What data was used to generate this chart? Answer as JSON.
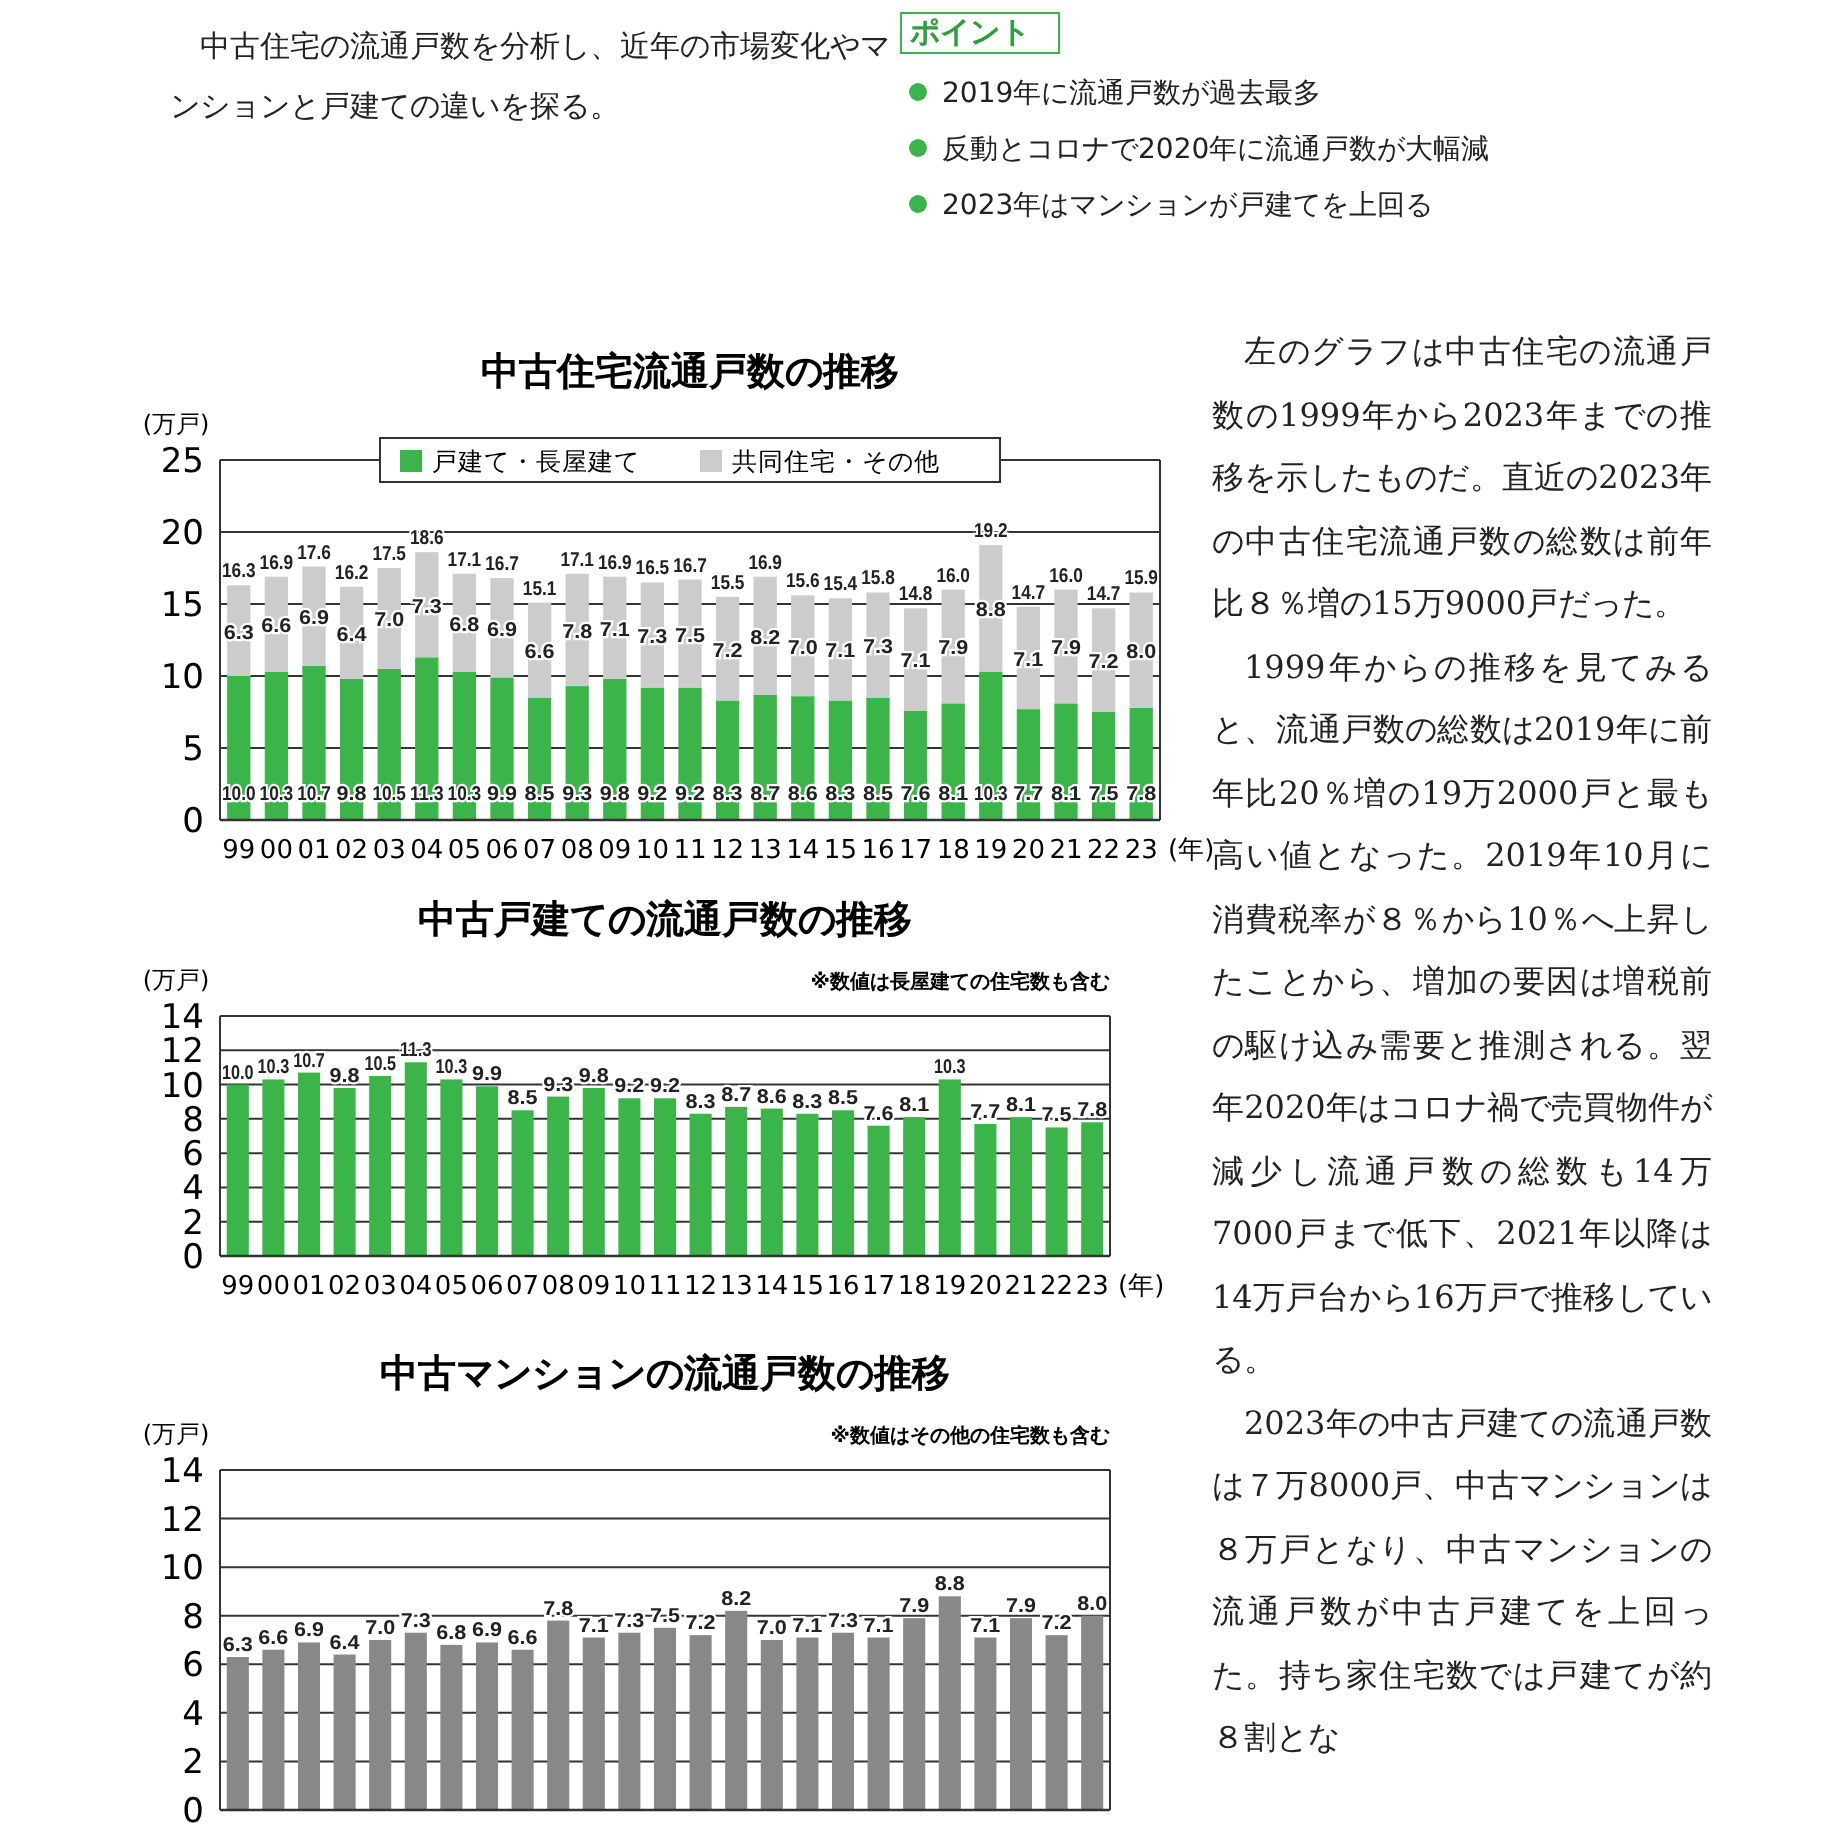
{
  "chart_data": [
    {
      "type": "other",
      "annotations": [
        "中古住宅の流通戸数を分析し、近年の市場変化やマンションと戸建ての違いを探る。"
      ]
    },
    {
      "type": "other",
      "title": "ポイント",
      "annotations": [
        "2019年に流通戸数が過去最多",
        "反動とコロナで2020年に流通戸数が大幅減",
        "2023年はマンションが戸建てを上回る"
      ]
    },
    {
      "type": "bar",
      "stacked": true,
      "title": "中古住宅流通戸数の推移",
      "ylabel": "(万戸)",
      "xlabel": "(年)",
      "categories": [
        "99",
        "00",
        "01",
        "02",
        "03",
        "04",
        "05",
        "06",
        "07",
        "08",
        "09",
        "10",
        "11",
        "12",
        "13",
        "14",
        "15",
        "16",
        "17",
        "18",
        "19",
        "20",
        "21",
        "22",
        "23"
      ],
      "series": [
        {
          "name": "戸建て・長屋建て",
          "color": "#3bb54a",
          "values": [
            10.0,
            10.3,
            10.7,
            9.8,
            10.5,
            11.3,
            10.3,
            9.9,
            8.5,
            9.3,
            9.8,
            9.2,
            9.2,
            8.3,
            8.7,
            8.6,
            8.3,
            8.5,
            7.6,
            8.1,
            10.3,
            7.7,
            8.1,
            7.5,
            7.8
          ],
          "value_labels": [
            "10.0",
            "10.3",
            "10.7",
            "9.8",
            "10.5",
            "11.3",
            "10.3",
            "9.9",
            "8.5",
            "9.3",
            "9.8",
            "9.2",
            "9.2",
            "8.3",
            "8.7",
            "8.6",
            "8.3",
            "8.5",
            "7.6",
            "8.1",
            "10.3",
            "7.7",
            "8.1",
            "7.5",
            "7.8"
          ]
        },
        {
          "name": "共同住宅・その他",
          "color": "#cccccc",
          "values": [
            6.3,
            6.6,
            6.9,
            6.4,
            7.0,
            7.3,
            6.8,
            6.9,
            6.6,
            7.8,
            7.1,
            7.3,
            7.5,
            7.2,
            8.2,
            7.0,
            7.1,
            7.3,
            7.1,
            7.9,
            8.8,
            7.1,
            7.9,
            7.2,
            8.0
          ],
          "value_labels": [
            "6.3",
            "6.6",
            "6.9",
            "6.4",
            "7.0",
            "7.3",
            "6.8",
            "6.9",
            "6.6",
            "7.8",
            "7.1",
            "7.3",
            "7.5",
            "7.2",
            "8.2",
            "7.0",
            "7.1",
            "7.3",
            "7.1",
            "7.9",
            "8.8",
            "7.1",
            "7.9",
            "7.2",
            "8.0"
          ]
        }
      ],
      "totals": [
        "16.3",
        "16.9",
        "17.6",
        "16.2",
        "17.5",
        "18.6",
        "17.1",
        "16.7",
        "15.1",
        "17.1",
        "16.9",
        "16.5",
        "16.7",
        "15.5",
        "16.9",
        "15.6",
        "15.4",
        "15.8",
        "14.8",
        "16.0",
        "19.2",
        "14.7",
        "16.0",
        "14.7",
        "15.9"
      ],
      "ylim": [
        0,
        25
      ],
      "yticks": [
        0,
        5,
        10,
        15,
        20,
        25
      ],
      "grid": "y",
      "legend": "top"
    },
    {
      "type": "bar",
      "title": "中古戸建ての流通戸数の推移",
      "subtitle": "※数値は長屋建ての住宅数も含む",
      "ylabel": "(万戸)",
      "xlabel": "(年)",
      "categories": [
        "99",
        "00",
        "01",
        "02",
        "03",
        "04",
        "05",
        "06",
        "07",
        "08",
        "09",
        "10",
        "11",
        "12",
        "13",
        "14",
        "15",
        "16",
        "17",
        "18",
        "19",
        "20",
        "21",
        "22",
        "23"
      ],
      "values": [
        10.0,
        10.3,
        10.7,
        9.8,
        10.5,
        11.3,
        10.3,
        9.9,
        8.5,
        9.3,
        9.8,
        9.2,
        9.2,
        8.3,
        8.7,
        8.6,
        8.3,
        8.5,
        7.6,
        8.1,
        10.3,
        7.7,
        8.1,
        7.5,
        7.8
      ],
      "value_labels": [
        "10.0",
        "10.3",
        "10.7",
        "9.8",
        "10.5",
        "11.3",
        "10.3",
        "9.9",
        "8.5",
        "9.3",
        "9.8",
        "9.2",
        "9.2",
        "8.3",
        "8.7",
        "8.6",
        "8.3",
        "8.5",
        "7.6",
        "8.1",
        "10.3",
        "7.7",
        "8.1",
        "7.5",
        "7.8"
      ],
      "color": "#3bb54a",
      "ylim": [
        0,
        14
      ],
      "yticks": [
        0,
        2,
        4,
        6,
        8,
        10,
        12,
        14
      ],
      "grid": "y"
    },
    {
      "type": "bar",
      "title": "中古マンションの流通戸数の推移",
      "subtitle": "※数値はその他の住宅数も含む",
      "ylabel": "(万戸)",
      "categories": [
        null,
        null,
        null,
        null,
        null,
        null,
        null,
        null,
        null,
        null,
        null,
        null,
        null,
        null,
        null,
        null,
        null,
        null,
        null,
        null,
        null,
        null,
        null,
        null,
        null
      ],
      "values": [
        6.3,
        6.6,
        6.9,
        6.4,
        7.0,
        7.3,
        6.8,
        6.9,
        6.6,
        7.8,
        7.1,
        7.3,
        7.5,
        7.2,
        8.2,
        7.0,
        7.1,
        7.3,
        7.1,
        7.9,
        8.8,
        7.1,
        7.9,
        7.2,
        8.0
      ],
      "value_labels": [
        "6.3",
        "6.6",
        "6.9",
        "6.4",
        "7.0",
        "7.3",
        "6.8",
        "6.9",
        "6.6",
        "7.8",
        "7.1",
        "7.3",
        "7.5",
        "7.2",
        "8.2",
        "7.0",
        "7.1",
        "7.3",
        "7.1",
        "7.9",
        "8.8",
        "7.1",
        "7.9",
        "7.2",
        "8.0"
      ],
      "color": "#888888",
      "ylim": [
        0,
        14
      ],
      "yticks": [
        0,
        2,
        4,
        6,
        8,
        10,
        12,
        14
      ],
      "grid": "y"
    },
    {
      "type": "other",
      "annotations": [
        "左のグラフは中古住宅の流通戸数の1999年から2023年までの推移を示したものだ。直近の2023年の中古住宅流通戸数の総数は前年比８％増の15万9000戸だった。",
        "1999年からの推移を見てみると、流通戸数の総数は2019年に前年比20％増の19万2000戸と最も高い値となった。2019年10月に消費税率が８％から10％へ上昇したことから、増加の要因は増税前の駆け込み需要と推測される。翌年2020年はコロナ禍で売買物件が減少し流通戸数の総数も14万7000戸まで低下、2021年以降は14万戸台から16万戸で推移している。",
        "2023年の中古戸建ての流通戸数は７万8000戸、中古マンションは８万戸となり、中古マンションの流通戸数が中古戸建てを上回った。持ち家住宅数では戸建てが約８割とな"
      ]
    }
  ]
}
